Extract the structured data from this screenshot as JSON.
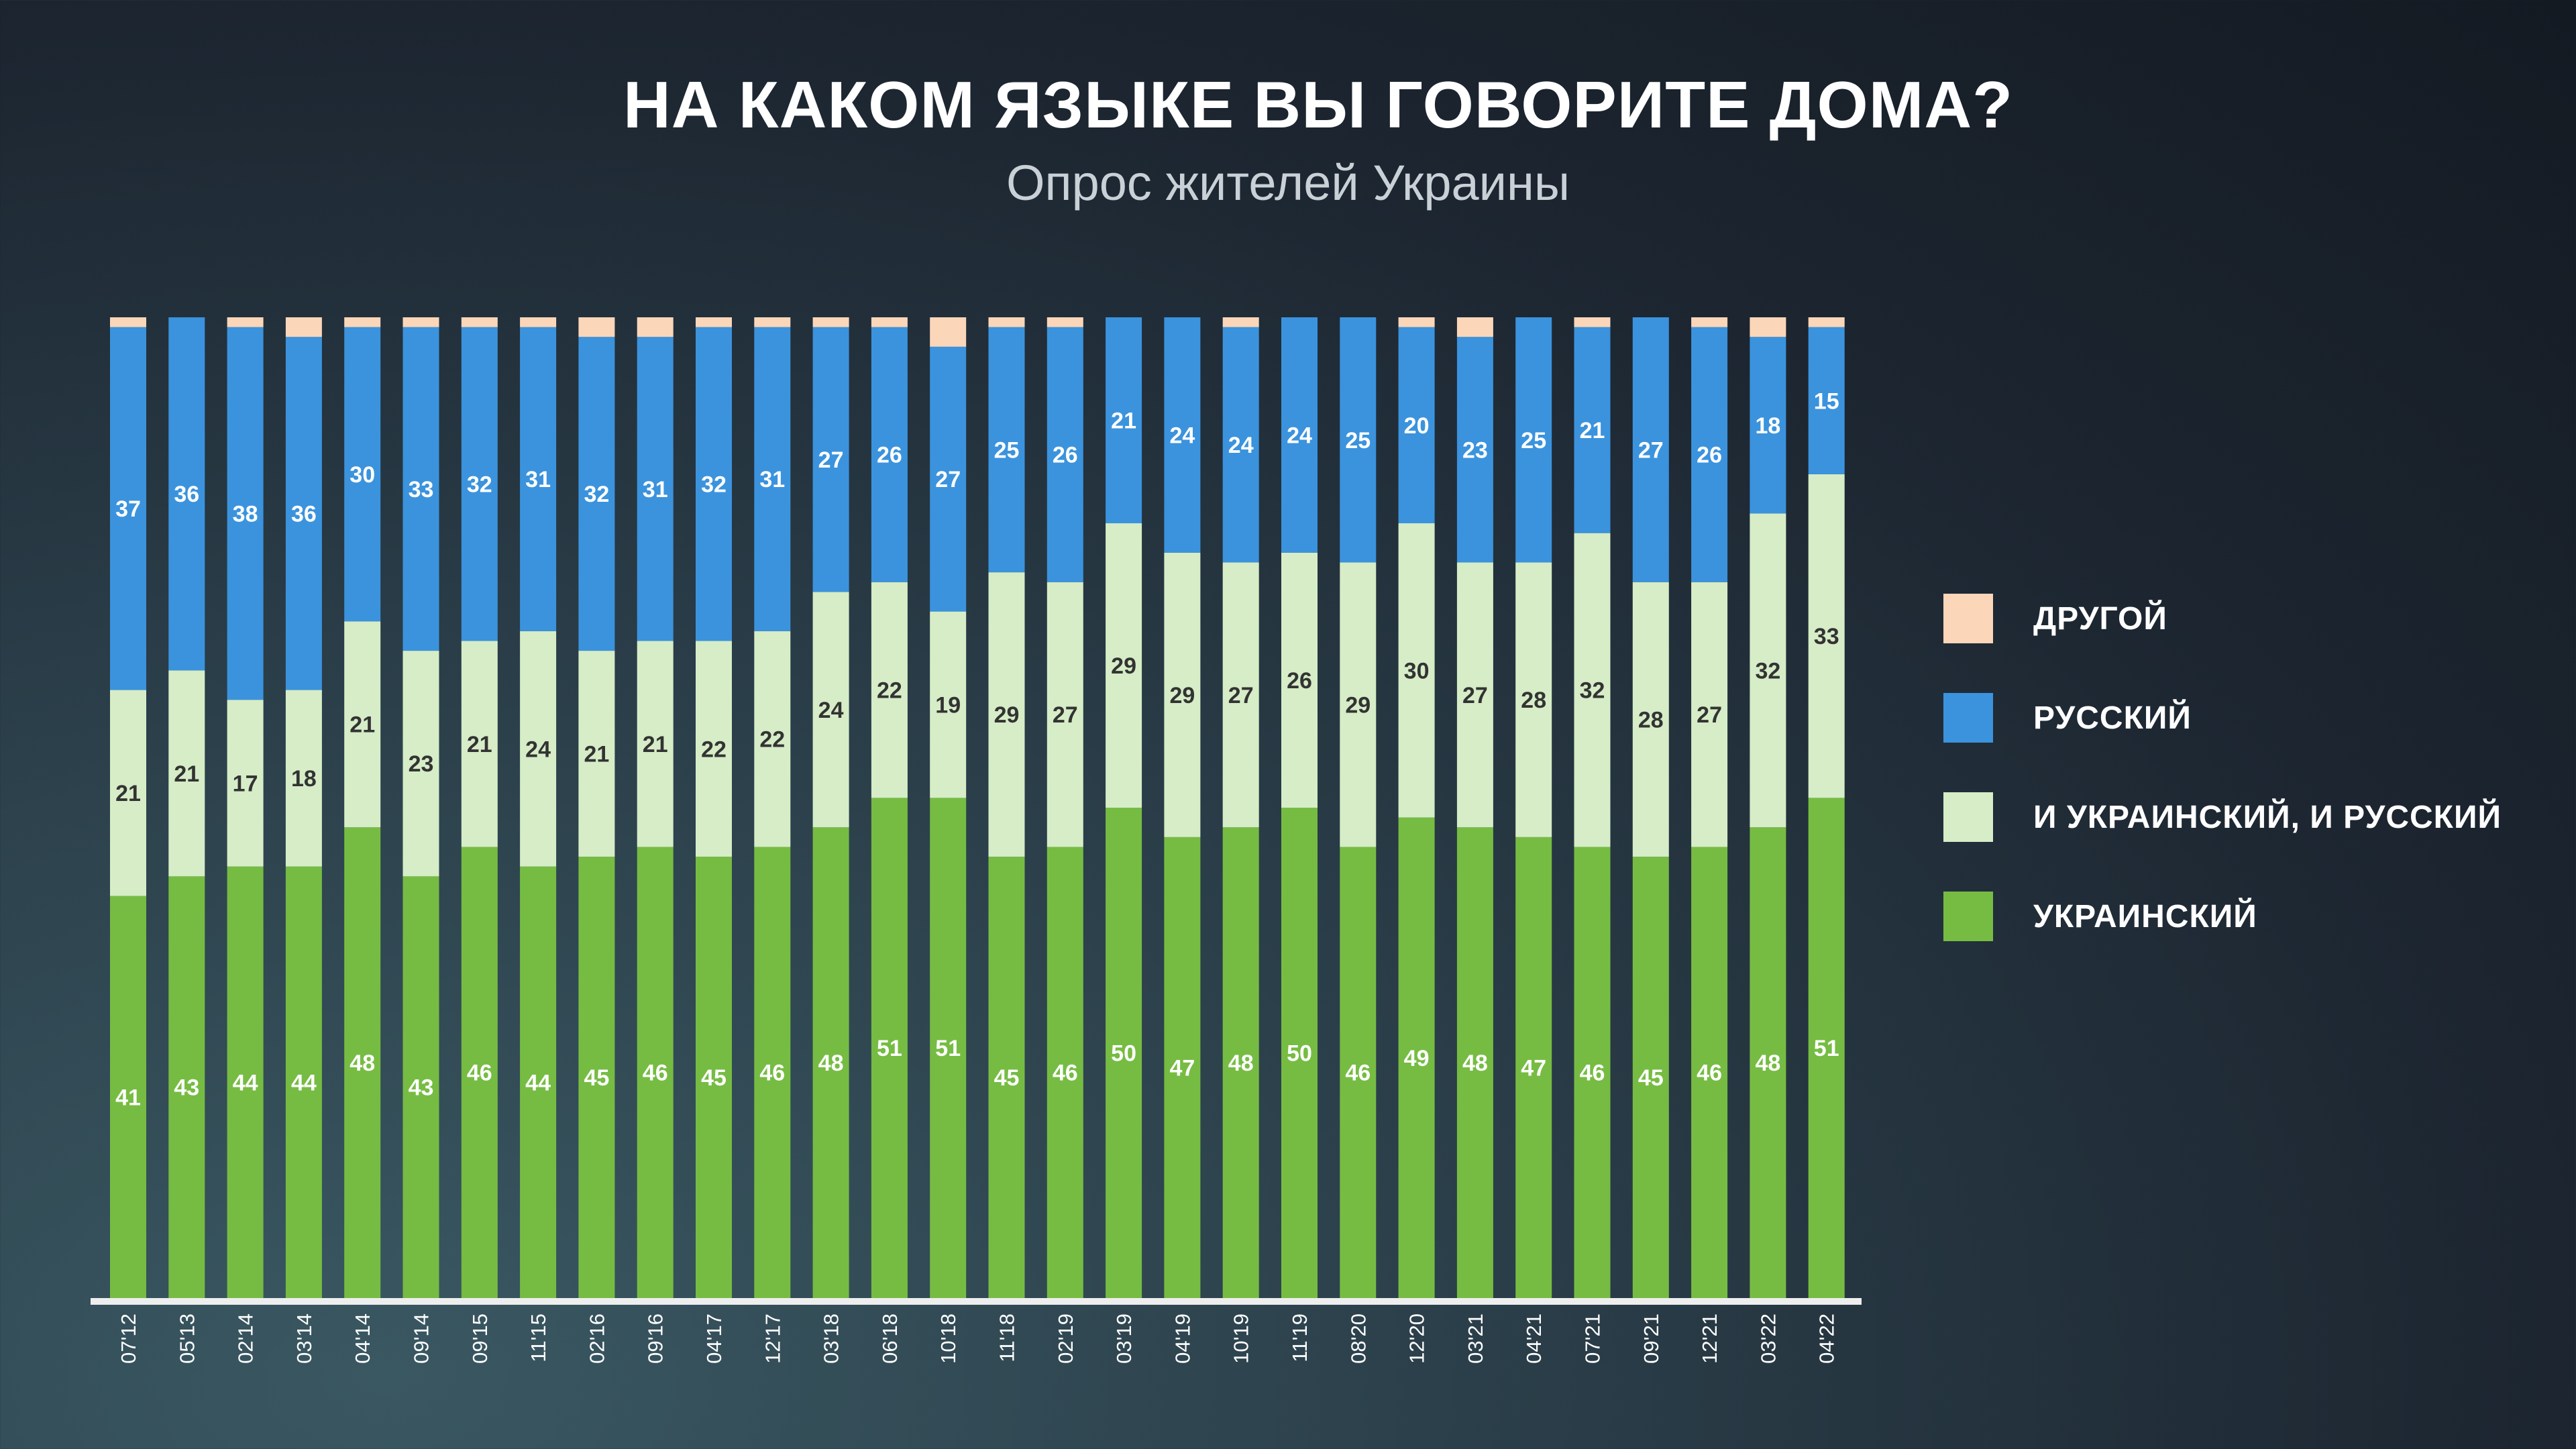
{
  "title": "НА КАКОМ ЯЗЫКЕ ВЫ ГОВОРИТЕ ДОМА?",
  "subtitle": "Опрос жителей Украины",
  "chart_data": {
    "type": "bar",
    "stacked": true,
    "categories": [
      "07'12",
      "05'13",
      "02'14",
      "03'14",
      "04'14",
      "09'14",
      "09'15",
      "11'15",
      "02'16",
      "09'16",
      "04'17",
      "12'17",
      "03'18",
      "06'18",
      "10'18",
      "11'18",
      "02'19",
      "03'19",
      "04'19",
      "10'19",
      "11'19",
      "08'20",
      "12'20",
      "03'21",
      "04'21",
      "07'21",
      "09'21",
      "12'21",
      "03'22",
      "04'22"
    ],
    "series": [
      {
        "name": "УКРАИНСКИЙ",
        "color": "#76bc43",
        "values": [
          41,
          43,
          44,
          44,
          48,
          43,
          46,
          44,
          45,
          46,
          45,
          46,
          48,
          51,
          51,
          45,
          46,
          50,
          47,
          48,
          50,
          46,
          49,
          48,
          47,
          46,
          45,
          46,
          48,
          51
        ]
      },
      {
        "name": "И УКРАИНСКИЙ, И РУССКИЙ",
        "color": "#d6edc7",
        "values": [
          21,
          21,
          17,
          18,
          21,
          23,
          21,
          24,
          21,
          21,
          22,
          22,
          24,
          22,
          19,
          29,
          27,
          29,
          29,
          27,
          26,
          29,
          30,
          27,
          28,
          32,
          28,
          27,
          32,
          33
        ]
      },
      {
        "name": "РУССКИЙ",
        "color": "#3b93dd",
        "values": [
          37,
          36,
          38,
          36,
          30,
          33,
          32,
          31,
          32,
          31,
          32,
          31,
          27,
          26,
          27,
          25,
          26,
          21,
          24,
          24,
          24,
          25,
          20,
          23,
          25,
          21,
          27,
          26,
          18,
          15
        ]
      },
      {
        "name": "ДРУГОЙ",
        "color": "#fbd6b9",
        "values": null
      }
    ],
    "ylim": [
      0,
      100
    ],
    "grid": false,
    "legend": "right"
  }
}
